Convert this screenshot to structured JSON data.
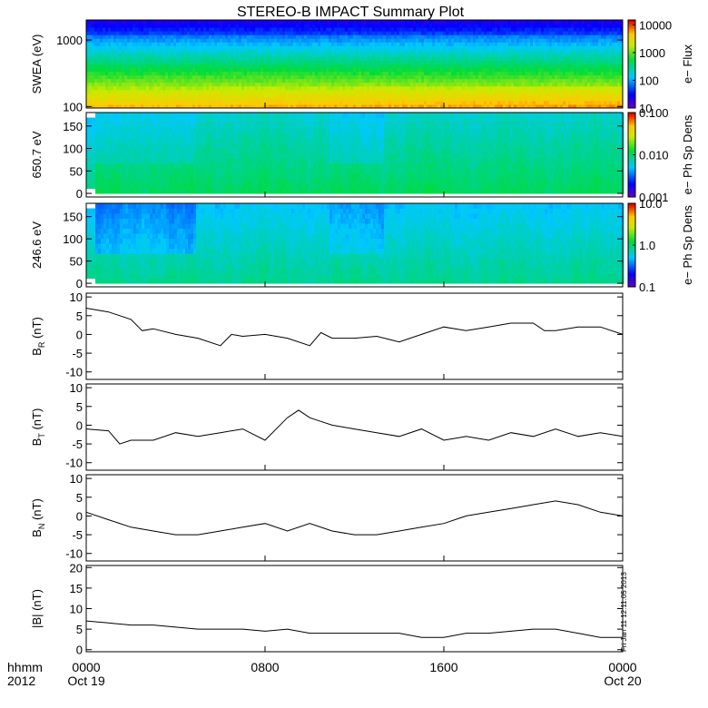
{
  "title": "STEREO-B IMPACT Summary Plot",
  "colors": {
    "axis": "#000000",
    "trace": "#000000",
    "background": "#ffffff"
  },
  "time_axis": {
    "corner_top": "hhmm",
    "corner_bottom": "2012",
    "ticks": [
      {
        "hour": 0,
        "top": "0000",
        "bottom": "Oct 19"
      },
      {
        "hour": 8,
        "top": "0800",
        "bottom": ""
      },
      {
        "hour": 16,
        "top": "1600",
        "bottom": ""
      },
      {
        "hour": 24,
        "top": "0000",
        "bottom": "Oct 20"
      }
    ],
    "range_hours": [
      0,
      24
    ]
  },
  "side_note": "Fri Jan 11 12:11:05 2013",
  "chart_data": [
    {
      "type": "heatmap",
      "ylabel": "SWEA (eV)",
      "yscale": "log",
      "ylim": [
        95,
        2000
      ],
      "yticks": [
        {
          "v": 100,
          "t": "100"
        },
        {
          "v": 1000,
          "t": "1000"
        }
      ],
      "colorbar": {
        "label": "e− Flux",
        "scale": "log",
        "range": [
          10,
          15000
        ],
        "ticks": [
          {
            "v": 10,
            "t": "10"
          },
          {
            "v": 100,
            "t": "100"
          },
          {
            "v": 1000,
            "t": "1000"
          },
          {
            "v": 10000,
            "t": "10000"
          }
        ]
      },
      "description_levels_bottom_to_top": [
        7000,
        3500,
        1500,
        700,
        350,
        150,
        60,
        25,
        12
      ]
    },
    {
      "type": "heatmap",
      "ylabel": "650.7 eV",
      "ylim": [
        -8,
        180
      ],
      "yticks": [
        {
          "v": 0,
          "t": "0"
        },
        {
          "v": 50,
          "t": "50"
        },
        {
          "v": 100,
          "t": "100"
        },
        {
          "v": 150,
          "t": "150"
        }
      ],
      "colorbar": {
        "label": "e− Ph Sp Dens",
        "scale": "log",
        "range": [
          0.001,
          0.1
        ],
        "ticks": [
          {
            "v": 0.001,
            "t": "0.001"
          },
          {
            "v": 0.01,
            "t": "0.010"
          },
          {
            "v": 0.1,
            "t": "0.100"
          }
        ]
      }
    },
    {
      "type": "heatmap",
      "ylabel": "246.6 eV",
      "ylim": [
        -8,
        180
      ],
      "yticks": [
        {
          "v": 0,
          "t": "0"
        },
        {
          "v": 50,
          "t": "50"
        },
        {
          "v": 100,
          "t": "100"
        },
        {
          "v": 150,
          "t": "150"
        }
      ],
      "colorbar": {
        "label": "e− Ph Sp Dens",
        "scale": "log",
        "range": [
          0.1,
          10
        ],
        "ticks": [
          {
            "v": 0.1,
            "t": "0.1"
          },
          {
            "v": 1,
            "t": "1.0"
          },
          {
            "v": 10,
            "t": "10.0"
          }
        ]
      }
    },
    {
      "type": "line",
      "ylabel": "B",
      "ylabel_sub": "R",
      "ylabel_unit": " (nT)",
      "ylim": [
        -12,
        11
      ],
      "yticks": [
        {
          "v": -10,
          "t": "-10"
        },
        {
          "v": -5,
          "t": "-5"
        },
        {
          "v": 0,
          "t": "0"
        },
        {
          "v": 5,
          "t": "5"
        },
        {
          "v": 10,
          "t": "10"
        }
      ],
      "x": [
        0,
        1,
        2,
        2.5,
        3,
        4,
        5,
        6,
        6.5,
        7,
        8,
        9,
        10,
        10.5,
        11,
        12,
        13,
        14,
        15,
        16,
        17,
        18,
        19,
        20,
        20.5,
        21,
        22,
        23,
        24
      ],
      "y": [
        7,
        6,
        4,
        1,
        1.5,
        0,
        -1,
        -3,
        0,
        -0.5,
        0,
        -1,
        -3,
        0.5,
        -1,
        -1,
        -0.5,
        -2,
        0,
        2,
        1,
        2,
        3,
        3,
        1,
        1,
        2,
        2,
        0
      ]
    },
    {
      "type": "line",
      "ylabel": "B",
      "ylabel_sub": "T",
      "ylabel_unit": " (nT)",
      "ylim": [
        -12,
        11
      ],
      "yticks": [
        {
          "v": -10,
          "t": "-10"
        },
        {
          "v": -5,
          "t": "-5"
        },
        {
          "v": 0,
          "t": "0"
        },
        {
          "v": 5,
          "t": "5"
        },
        {
          "v": 10,
          "t": "10"
        }
      ],
      "x": [
        0,
        1,
        1.5,
        2,
        3,
        4,
        5,
        6,
        7,
        8,
        9,
        9.5,
        10,
        10.5,
        11,
        12,
        13,
        14,
        15,
        16,
        17,
        18,
        19,
        20,
        21,
        22,
        23,
        24
      ],
      "y": [
        -1,
        -1.5,
        -5,
        -4,
        -4,
        -2,
        -3,
        -2,
        -1,
        -4,
        2,
        4,
        2,
        1,
        0,
        -1,
        -2,
        -3,
        -1,
        -4,
        -3,
        -4,
        -2,
        -3,
        -1,
        -3,
        -2,
        -3
      ]
    },
    {
      "type": "line",
      "ylabel": "B",
      "ylabel_sub": "N",
      "ylabel_unit": " (nT)",
      "ylim": [
        -12,
        11
      ],
      "yticks": [
        {
          "v": -10,
          "t": "-10"
        },
        {
          "v": -5,
          "t": "-5"
        },
        {
          "v": 0,
          "t": "0"
        },
        {
          "v": 5,
          "t": "5"
        },
        {
          "v": 10,
          "t": "10"
        }
      ],
      "x": [
        0,
        1,
        2,
        3,
        4,
        5,
        6,
        7,
        8,
        9,
        10,
        11,
        12,
        13,
        14,
        15,
        16,
        17,
        18,
        19,
        20,
        21,
        22,
        23,
        24
      ],
      "y": [
        1,
        -1,
        -3,
        -4,
        -5,
        -5,
        -4,
        -3,
        -2,
        -4,
        -2,
        -4,
        -5,
        -5,
        -4,
        -3,
        -2,
        0,
        1,
        2,
        3,
        4,
        3,
        1,
        0
      ]
    },
    {
      "type": "line",
      "ylabel": "|B| (nT)",
      "ylim": [
        -0.5,
        20.5
      ],
      "yticks": [
        {
          "v": 0,
          "t": "0"
        },
        {
          "v": 5,
          "t": "5"
        },
        {
          "v": 10,
          "t": "10"
        },
        {
          "v": 15,
          "t": "15"
        },
        {
          "v": 20,
          "t": "20"
        }
      ],
      "x": [
        0,
        1,
        2,
        3,
        4,
        5,
        6,
        7,
        8,
        9,
        10,
        11,
        12,
        13,
        14,
        15,
        16,
        17,
        18,
        19,
        20,
        21,
        22,
        23,
        24
      ],
      "y": [
        7,
        6.5,
        6,
        6,
        5.5,
        5,
        5,
        5,
        4.5,
        5,
        4,
        4,
        4,
        4,
        4,
        3,
        3,
        4,
        4,
        4.5,
        5,
        5,
        4,
        3,
        3
      ]
    }
  ]
}
